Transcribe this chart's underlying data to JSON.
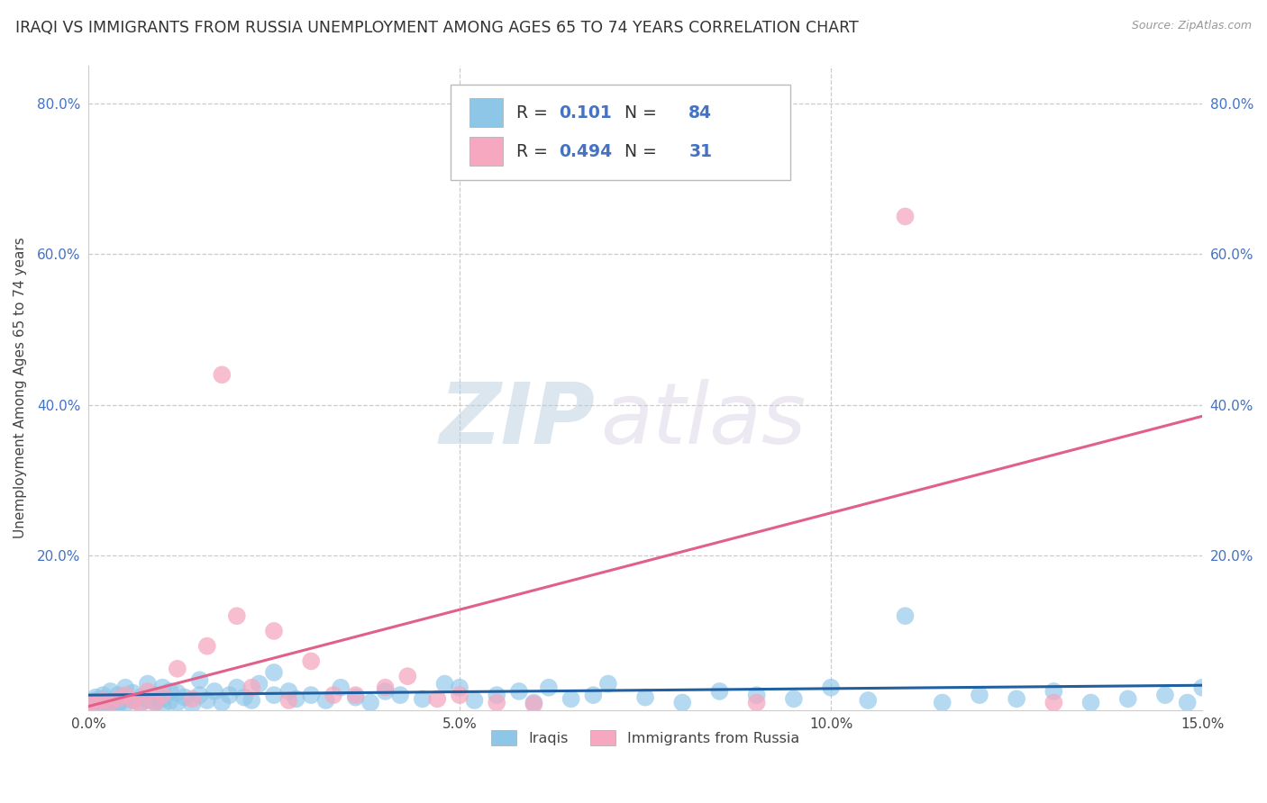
{
  "title": "IRAQI VS IMMIGRANTS FROM RUSSIA UNEMPLOYMENT AMONG AGES 65 TO 74 YEARS CORRELATION CHART",
  "source": "Source: ZipAtlas.com",
  "ylabel": "Unemployment Among Ages 65 to 74 years",
  "xlim": [
    0.0,
    0.15
  ],
  "ylim": [
    -0.005,
    0.85
  ],
  "xtick_pos": [
    0.0,
    0.05,
    0.1,
    0.15
  ],
  "xtick_labels": [
    "0.0%",
    "5.0%",
    "10.0%",
    "15.0%"
  ],
  "ytick_pos": [
    0.0,
    0.2,
    0.4,
    0.6,
    0.8
  ],
  "ytick_labels": [
    "",
    "20.0%",
    "40.0%",
    "60.0%",
    "80.0%"
  ],
  "blue_color": "#8ec6e8",
  "pink_color": "#f5a8c0",
  "blue_line_color": "#2060a0",
  "pink_line_color": "#e0608a",
  "R_blue": "0.101",
  "N_blue": "84",
  "R_pink": "0.494",
  "N_pink": "31",
  "legend_label_blue": "Iraqis",
  "legend_label_pink": "Immigrants from Russia",
  "watermark_zip": "ZIP",
  "watermark_atlas": "atlas",
  "bg_color": "#ffffff",
  "grid_color": "#cccccc",
  "title_fontsize": 12.5,
  "label_fontsize": 11,
  "tick_fontsize": 11,
  "accent_color": "#4472c4",
  "pink_line_x0": 0.0,
  "pink_line_y0": 0.0,
  "pink_line_x1": 0.15,
  "pink_line_y1": 0.385,
  "blue_line_x0": 0.0,
  "blue_line_y0": 0.015,
  "blue_line_x1": 0.15,
  "blue_line_y1": 0.028,
  "blue_pts_x": [
    0.0,
    0.001,
    0.001,
    0.001,
    0.002,
    0.002,
    0.002,
    0.003,
    0.003,
    0.003,
    0.004,
    0.004,
    0.005,
    0.005,
    0.005,
    0.006,
    0.006,
    0.007,
    0.007,
    0.008,
    0.008,
    0.009,
    0.009,
    0.01,
    0.01,
    0.011,
    0.011,
    0.012,
    0.012,
    0.013,
    0.014,
    0.015,
    0.015,
    0.016,
    0.017,
    0.018,
    0.019,
    0.02,
    0.021,
    0.022,
    0.023,
    0.025,
    0.025,
    0.027,
    0.028,
    0.03,
    0.032,
    0.034,
    0.036,
    0.038,
    0.04,
    0.042,
    0.045,
    0.048,
    0.05,
    0.052,
    0.055,
    0.058,
    0.06,
    0.062,
    0.065,
    0.068,
    0.07,
    0.075,
    0.08,
    0.085,
    0.09,
    0.095,
    0.1,
    0.105,
    0.11,
    0.115,
    0.12,
    0.125,
    0.13,
    0.135,
    0.14,
    0.145,
    0.148,
    0.15,
    0.002,
    0.003,
    0.004,
    0.01
  ],
  "blue_pts_y": [
    0.005,
    0.003,
    0.008,
    0.012,
    0.005,
    0.01,
    0.015,
    0.003,
    0.007,
    0.02,
    0.005,
    0.015,
    0.003,
    0.01,
    0.025,
    0.008,
    0.018,
    0.005,
    0.012,
    0.008,
    0.03,
    0.005,
    0.015,
    0.01,
    0.025,
    0.007,
    0.02,
    0.005,
    0.018,
    0.012,
    0.003,
    0.015,
    0.035,
    0.008,
    0.02,
    0.005,
    0.015,
    0.025,
    0.012,
    0.008,
    0.03,
    0.015,
    0.045,
    0.02,
    0.01,
    0.015,
    0.008,
    0.025,
    0.012,
    0.005,
    0.02,
    0.015,
    0.01,
    0.03,
    0.025,
    0.008,
    0.015,
    0.02,
    0.005,
    0.025,
    0.01,
    0.015,
    0.03,
    0.012,
    0.005,
    0.02,
    0.015,
    0.01,
    0.025,
    0.008,
    0.12,
    0.005,
    0.015,
    0.01,
    0.02,
    0.005,
    0.01,
    0.015,
    0.005,
    0.025,
    0.0,
    0.005,
    0.0,
    0.0
  ],
  "pink_pts_x": [
    0.0,
    0.001,
    0.002,
    0.003,
    0.004,
    0.005,
    0.006,
    0.007,
    0.008,
    0.009,
    0.01,
    0.012,
    0.014,
    0.016,
    0.018,
    0.02,
    0.022,
    0.025,
    0.027,
    0.03,
    0.033,
    0.036,
    0.04,
    0.043,
    0.047,
    0.05,
    0.055,
    0.06,
    0.09,
    0.11,
    0.13
  ],
  "pink_pts_y": [
    0.005,
    0.003,
    0.008,
    0.005,
    0.01,
    0.015,
    0.008,
    0.003,
    0.02,
    0.005,
    0.015,
    0.05,
    0.01,
    0.08,
    0.44,
    0.12,
    0.025,
    0.1,
    0.008,
    0.06,
    0.015,
    0.015,
    0.025,
    0.04,
    0.01,
    0.015,
    0.005,
    0.003,
    0.005,
    0.65,
    0.005
  ]
}
